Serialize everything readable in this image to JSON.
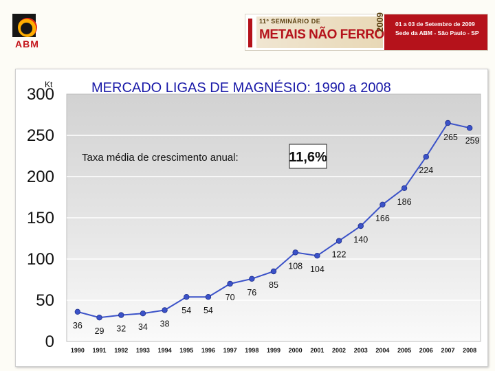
{
  "header": {
    "logo_text": "ABM",
    "event": {
      "line1": "11º SEMINÁRIO DE",
      "line2": "METAIS NÃO FERROSOS",
      "year": "2009",
      "info": [
        "01 a 03 de Setembro de 2009",
        "Sede da ABM - São Paulo - SP"
      ]
    }
  },
  "colors": {
    "series_line": "#3b52c8",
    "title": "#1a1aa8",
    "brand_red": "#b5121b"
  },
  "chart_data": {
    "type": "line",
    "title": "MERCADO LIGAS DE MAGNÉSIO: 1990 a 2008",
    "unit_label": "Kt",
    "annotation_label": "Taxa média de crescimento anual:",
    "annotation_value": "11,6%",
    "x": [
      "1990",
      "1991",
      "1992",
      "1993",
      "1994",
      "1995",
      "1996",
      "1997",
      "1998",
      "1999",
      "2000",
      "2001",
      "2002",
      "2003",
      "2004",
      "2005",
      "2006",
      "2007",
      "2008"
    ],
    "series": [
      {
        "values": [
          36,
          29,
          32,
          34,
          38,
          54,
          54,
          70,
          76,
          85,
          108,
          104,
          122,
          140,
          166,
          186,
          224,
          265,
          259
        ],
        "labels": [
          "36",
          "29",
          "32",
          "34",
          "38",
          "54",
          "54",
          "70",
          "76",
          "85",
          "108",
          "104",
          "122",
          "140",
          "166",
          "186",
          "224",
          "265",
          "259"
        ]
      }
    ],
    "yticks": [
      "0",
      "50",
      "100",
      "150",
      "200",
      "250",
      "300"
    ],
    "ylim": [
      0,
      300
    ],
    "grid": "horizontal",
    "legend": "none"
  }
}
